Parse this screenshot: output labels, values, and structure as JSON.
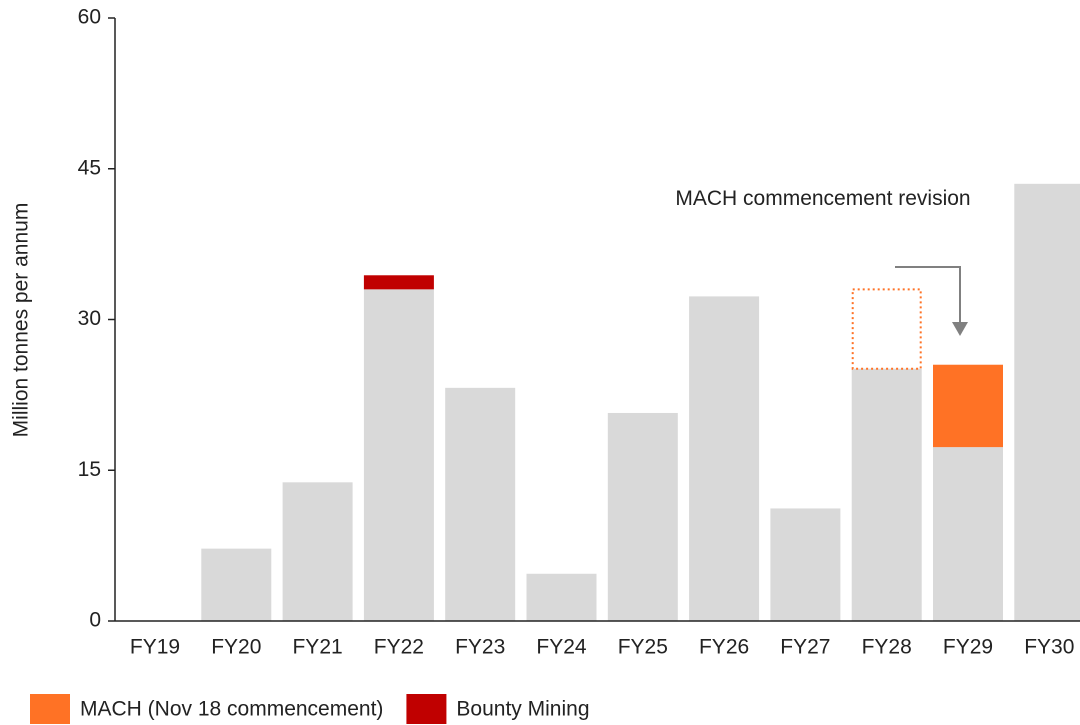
{
  "chart_data": {
    "type": "bar",
    "stacked": true,
    "y_label": "Million tonnes per annum",
    "categories": [
      "FY19",
      "FY20",
      "FY21",
      "FY22",
      "FY23",
      "FY24",
      "FY25",
      "FY26",
      "FY27",
      "FY28",
      "FY29",
      "FY30"
    ],
    "series": [
      {
        "color": "#d9d9d9",
        "values": [
          0,
          7.2,
          13.8,
          33.0,
          23.2,
          4.7,
          20.7,
          32.3,
          11.2,
          25.1,
          17.3,
          43.5
        ]
      },
      {
        "name": "MACH (Nov 18 commencement)",
        "color": "#ff7225",
        "values": [
          null,
          null,
          null,
          null,
          null,
          null,
          null,
          null,
          null,
          null,
          8.2,
          null
        ]
      },
      {
        "name": "Bounty Mining",
        "color": "#c00000",
        "values": [
          null,
          null,
          null,
          1.4,
          null,
          null,
          null,
          null,
          null,
          null,
          null,
          null
        ]
      },
      {
        "color": "#ff7225",
        "style": "dashed",
        "values": [
          null,
          null,
          null,
          null,
          null,
          null,
          null,
          null,
          null,
          7.9,
          null,
          null
        ]
      }
    ],
    "annotation": "MACH commencement revision",
    "ylim": [
      0,
      60
    ],
    "yticks": [
      0,
      15,
      30,
      45,
      60
    ]
  }
}
